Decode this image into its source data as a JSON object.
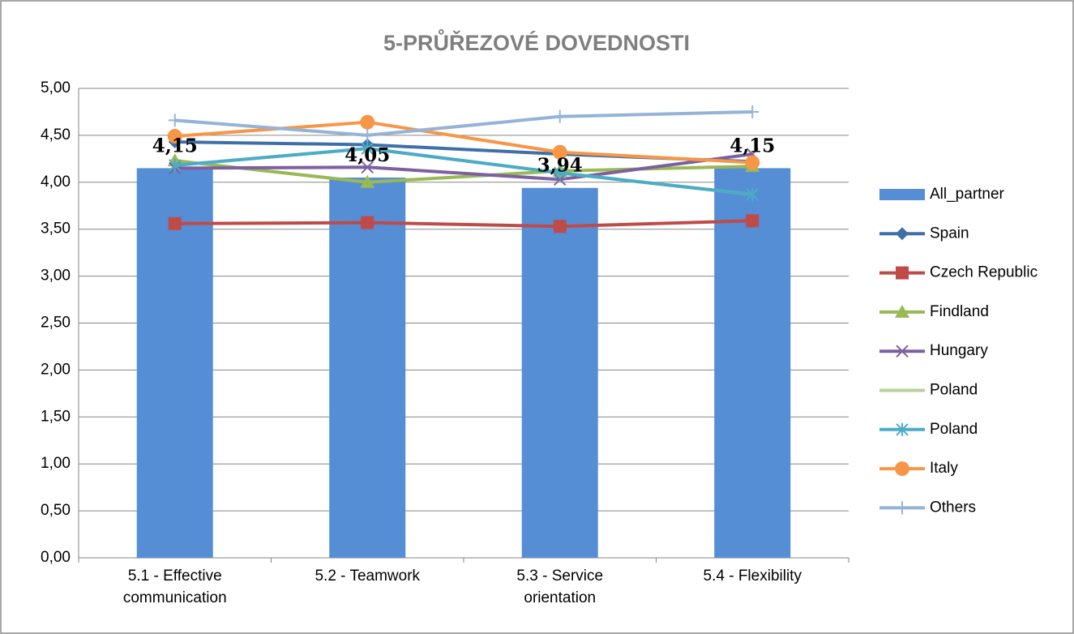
{
  "chart_data": {
    "type": "bar_line",
    "title": "5-PRŮŘEZOVÉ DOVEDNOSTI",
    "categories": [
      "5.1 - Effective communication",
      "5.2 - Teamwork",
      "5.3 - Service orientation",
      "5.4 - Flexibility"
    ],
    "bars": {
      "name": "All_partner",
      "color": "#558ed5",
      "values": [
        4.15,
        4.05,
        3.94,
        4.15
      ],
      "value_labels": [
        "4,15",
        "4,05",
        "3,94",
        "4,15"
      ]
    },
    "series": [
      {
        "name": "Spain",
        "color": "#3f6fa8",
        "marker": "diamond",
        "values": [
          4.43,
          4.4,
          4.3,
          4.22
        ]
      },
      {
        "name": "Czech Republic",
        "color": "#be4b48",
        "marker": "square",
        "values": [
          3.56,
          3.57,
          3.53,
          3.59
        ]
      },
      {
        "name": "Findland",
        "color": "#98b954",
        "marker": "triangle",
        "values": [
          4.23,
          4.0,
          4.12,
          4.17
        ]
      },
      {
        "name": "Hungary",
        "color": "#7d60a0",
        "marker": "x",
        "values": [
          4.15,
          4.16,
          4.03,
          4.3
        ]
      },
      {
        "name": "Poland",
        "color": "#b7d197",
        "marker": "none",
        "values": [
          4.18,
          4.36,
          4.1,
          3.87
        ]
      },
      {
        "name": "Poland",
        "color": "#4bacc6",
        "marker": "star",
        "values": [
          4.18,
          4.36,
          4.1,
          3.87
        ]
      },
      {
        "name": "Italy",
        "color": "#f79646",
        "marker": "circle",
        "values": [
          4.49,
          4.64,
          4.32,
          4.21
        ]
      },
      {
        "name": "Others",
        "color": "#95b3d7",
        "marker": "plus",
        "values": [
          4.66,
          4.5,
          4.7,
          4.75
        ]
      }
    ],
    "ylim": [
      0,
      5
    ],
    "yticks": [
      {
        "value": 0,
        "label": "0,00"
      },
      {
        "value": 0.5,
        "label": "0,50"
      },
      {
        "value": 1,
        "label": "1,00"
      },
      {
        "value": 1.5,
        "label": "1,50"
      },
      {
        "value": 2,
        "label": "2,00"
      },
      {
        "value": 2.5,
        "label": "2,50"
      },
      {
        "value": 3,
        "label": "3,00"
      },
      {
        "value": 3.5,
        "label": "3,50"
      },
      {
        "value": 4,
        "label": "4,00"
      },
      {
        "value": 4.5,
        "label": "4,50"
      },
      {
        "value": 5,
        "label": "5,00"
      }
    ],
    "grid": true,
    "legend": "right"
  }
}
